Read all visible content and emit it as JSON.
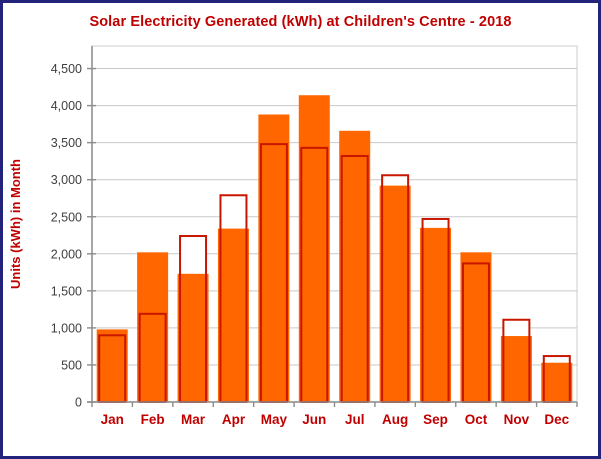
{
  "window": {
    "background": "#FFFFFF",
    "frame_border_color": "#23237B"
  },
  "chart_data": {
    "type": "bar",
    "title": "Solar Electricity Generated (kWh) at Children's Centre - 2018",
    "title_color": "#C00000",
    "xlabel": "",
    "ylabel": "Units (kWh) in Month",
    "categories": [
      "Jan",
      "Feb",
      "Mar",
      "Apr",
      "May",
      "Jun",
      "Jul",
      "Aug",
      "Sep",
      "Oct",
      "Nov",
      "Dec"
    ],
    "series": [
      {
        "name": "orange filled bars",
        "style": "filled",
        "color": "#FF6600",
        "values": [
          980,
          2020,
          1730,
          2340,
          3880,
          4140,
          3660,
          2920,
          2350,
          2020,
          890,
          530
        ]
      },
      {
        "name": "red outlined bars",
        "style": "outlined-white-fill",
        "color": "#C81600",
        "values": [
          900,
          1190,
          2240,
          2790,
          3480,
          3430,
          3320,
          3060,
          2470,
          1870,
          1110,
          620
        ]
      }
    ],
    "ylim": [
      0,
      4750
    ],
    "ytick_interval": 500,
    "ytick_labels": [
      "0",
      "500",
      "1,000",
      "1,500",
      "2,000",
      "2,500",
      "3,000",
      "3,500",
      "4,000",
      "4,500"
    ],
    "grid": true,
    "legend": "none",
    "gridline_color": "#C9C9C9",
    "plot_border_color": "#D6D6D6",
    "axis_color": "#8C8C8C",
    "tick_label_color": "#3F3F3F",
    "month_label_color": "#C00000"
  }
}
